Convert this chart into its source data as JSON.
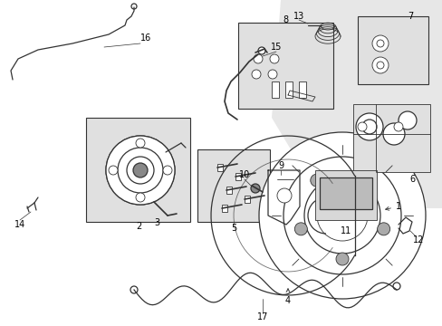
{
  "background_color": "#ffffff",
  "line_color": "#333333",
  "text_color": "#000000",
  "figsize": [
    4.89,
    3.6
  ],
  "dpi": 100,
  "fill_color": "#d8d8d8",
  "light_fill": "#e8e8e8"
}
